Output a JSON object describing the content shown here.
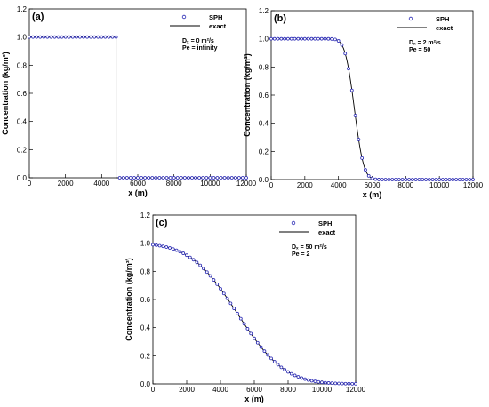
{
  "colors": {
    "sph_marker": "#2a2ab5",
    "exact_line": "#000000",
    "axis": "#000000"
  },
  "chart_data": [
    {
      "type": "scatter",
      "panel_label": "(a)",
      "xlabel": "x (m)",
      "ylabel": "Concentration (kg/m³)",
      "xlim": [
        0,
        12000
      ],
      "ylim": [
        0,
        1.2
      ],
      "xticks": [
        "0",
        "2000",
        "4000",
        "6000",
        "8000",
        "10000",
        "12000"
      ],
      "yticks": [
        "0.0",
        "0.2",
        "0.4",
        "0.6",
        "0.8",
        "1.0",
        "1.2"
      ],
      "legend": {
        "placement": "top-right",
        "markers_label": "SPH",
        "line_label": "exact"
      },
      "annotation": [
        "Dₓ = 0 m²/s",
        "Pe = infinity"
      ],
      "grid": false,
      "series": [
        {
          "name": "SPH",
          "style": "marker",
          "profile": "step",
          "center": 4800,
          "dispersion": 0
        },
        {
          "name": "exact",
          "style": "line",
          "profile": "step",
          "center": 4800,
          "dispersion": 0
        }
      ]
    },
    {
      "type": "scatter",
      "panel_label": "(b)",
      "xlabel": "x (m)",
      "ylabel": "Concentration (kg/m³)",
      "xlim": [
        0,
        12000
      ],
      "ylim": [
        0,
        1.2
      ],
      "xticks": [
        "0",
        "2000",
        "4000",
        "6000",
        "8000",
        "10000",
        "12000"
      ],
      "yticks": [
        "0.0",
        "0.2",
        "0.4",
        "0.6",
        "0.8",
        "1.0",
        "1.2"
      ],
      "legend": {
        "placement": "top-right",
        "markers_label": "SPH",
        "line_label": "exact"
      },
      "annotation": [
        "Dₓ = 2 m²/s",
        "Pe = 50"
      ],
      "grid": false,
      "series": [
        {
          "name": "SPH",
          "style": "marker",
          "profile": "erfc",
          "center": 4950,
          "dispersion": 2
        },
        {
          "name": "exact",
          "style": "line",
          "profile": "erfc",
          "center": 4950,
          "dispersion": 2
        }
      ]
    },
    {
      "type": "scatter",
      "panel_label": "(c)",
      "xlabel": "x (m)",
      "ylabel": "Concentration (kg/m³)",
      "xlim": [
        0,
        12000
      ],
      "ylim": [
        0,
        1.2
      ],
      "xticks": [
        "0",
        "2000",
        "4000",
        "6000",
        "8000",
        "10000",
        "12000"
      ],
      "yticks": [
        "0.0",
        "0.2",
        "0.4",
        "0.6",
        "0.8",
        "1.0",
        "1.2"
      ],
      "legend": {
        "placement": "top-right",
        "markers_label": "SPH",
        "line_label": "exact"
      },
      "annotation": [
        "Dₓ = 50 m²/s",
        "Pe = 2"
      ],
      "grid": false,
      "series": [
        {
          "name": "SPH",
          "style": "marker",
          "profile": "erfc",
          "center": 5000,
          "dispersion": 50
        },
        {
          "name": "exact",
          "style": "line",
          "profile": "erfc",
          "center": 5000,
          "dispersion": 50
        }
      ]
    }
  ]
}
